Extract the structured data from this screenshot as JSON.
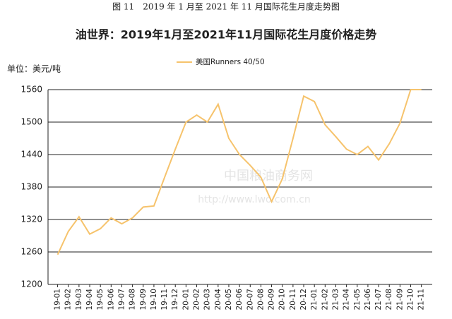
{
  "chart_data": {
    "type": "line",
    "caption": "图 11　2019 年 1 月至 2021 年 11 月国际花生月度走势图",
    "title": "油世界：2019年1月至2021年11月国际花生月度价格走势",
    "y_unit_label": "单位：美元/吨",
    "watermark": "中国粮油商务网",
    "watermark_url": "http://www.lwo.com.cn",
    "categories": [
      "19-01",
      "19-02",
      "19-03",
      "19-04",
      "19-05",
      "19-06",
      "19-07",
      "19-08",
      "19-09",
      "19-10",
      "19-11",
      "19-12",
      "20-01",
      "20-02",
      "20-03",
      "20-04",
      "20-05",
      "20-06",
      "20-07",
      "20-08",
      "20-09",
      "20-10",
      "20-11",
      "20-12",
      "21-01",
      "21-02",
      "21-03",
      "21-04",
      "21-05",
      "21-06",
      "21-07",
      "21-08",
      "21-09",
      "21-10",
      "21-11"
    ],
    "series": [
      {
        "name": "美国Runners 40/50",
        "color": "#f6c36c",
        "values": [
          1255,
          1298,
          1325,
          1293,
          1303,
          1323,
          1312,
          1323,
          1343,
          1345,
          1398,
          1450,
          1500,
          1513,
          1500,
          1533,
          1470,
          1440,
          1420,
          1398,
          1353,
          1395,
          1470,
          1548,
          1538,
          1495,
          1473,
          1450,
          1440,
          1455,
          1430,
          1460,
          1498,
          1560,
          1560
        ]
      }
    ],
    "ylim": [
      1200,
      1560
    ],
    "yticks": [
      1200,
      1260,
      1320,
      1380,
      1440,
      1500,
      1560
    ],
    "grid": true,
    "legend": "top"
  }
}
